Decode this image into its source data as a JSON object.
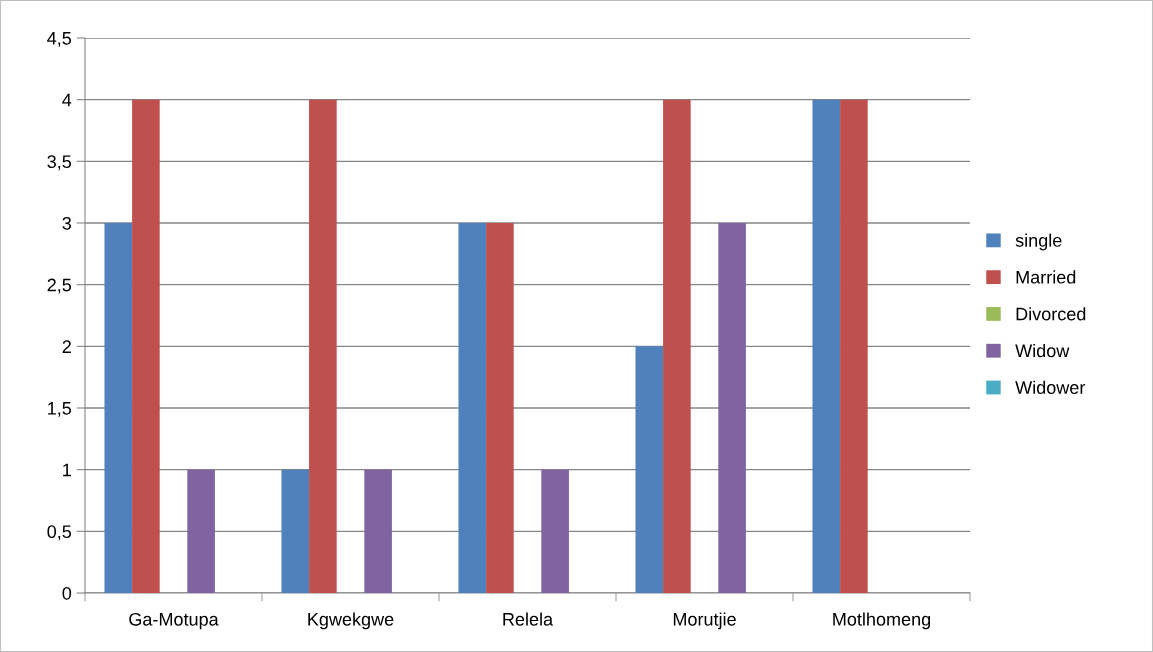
{
  "chart_data": {
    "type": "bar",
    "categories": [
      "Ga-Motupa",
      "Kgwekgwe",
      "Relela",
      "Morutjie",
      "Motlhomeng"
    ],
    "series": [
      {
        "name": "single",
        "color": "#4f81bd",
        "values": [
          3,
          1,
          3,
          2,
          4
        ]
      },
      {
        "name": "Married",
        "color": "#c0504d",
        "values": [
          4,
          4,
          3,
          4,
          4
        ]
      },
      {
        "name": "Divorced",
        "color": "#9bbb59",
        "values": [
          0,
          0,
          0,
          0,
          0
        ]
      },
      {
        "name": "Widow",
        "color": "#8064a2",
        "values": [
          1,
          1,
          1,
          3,
          0
        ]
      },
      {
        "name": "Widower",
        "color": "#4bacc6",
        "values": [
          0,
          0,
          0,
          0,
          0
        ]
      }
    ],
    "ylim": [
      0,
      4.5
    ],
    "yticks": [
      0,
      {
        "value": 0.5,
        "label": "0,5"
      },
      1,
      {
        "value": 1.5,
        "label": "1,5"
      },
      2,
      {
        "value": 2.5,
        "label": "2,5"
      },
      3,
      {
        "value": 3.5,
        "label": "3,5"
      },
      4,
      {
        "value": 4.5,
        "label": "4,5"
      }
    ],
    "grid": "y",
    "legend": "right"
  }
}
